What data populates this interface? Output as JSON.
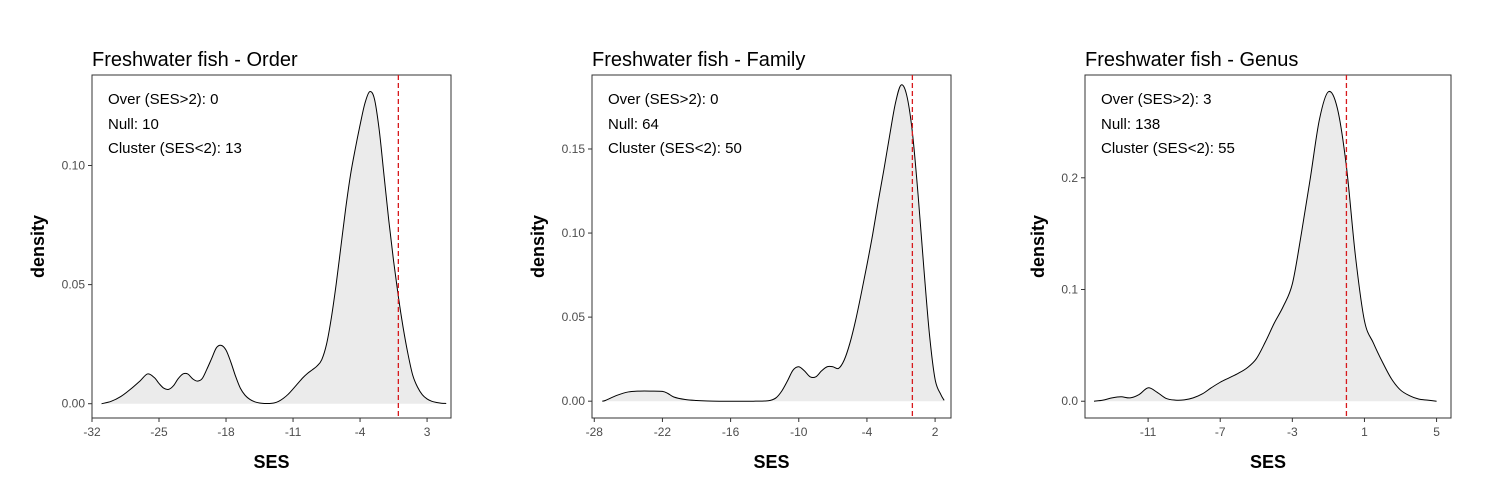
{
  "chart_data": [
    {
      "type": "area",
      "title": "Freshwater fish - Order",
      "xlabel": "SES",
      "ylabel": "density",
      "xlim": [
        -32,
        5.5
      ],
      "ylim": [
        -0.006,
        0.138
      ],
      "xticks": [
        -32,
        -25,
        -18,
        -11,
        -4,
        3
      ],
      "yticks": [
        0.0,
        0.05,
        0.1
      ],
      "ytick_labels": [
        "0.00",
        "0.05",
        "0.10"
      ],
      "vline": 0,
      "annotations": [
        "Over (SES>2): 0",
        "Null: 10",
        "Cluster (SES<2): 13"
      ],
      "grid": false,
      "series": [
        {
          "x": [
            -31,
            -30,
            -29,
            -28,
            -27,
            -26.2,
            -25.5,
            -25,
            -24.5,
            -24,
            -23.5,
            -23,
            -22.5,
            -22,
            -21.5,
            -21,
            -20.5,
            -20,
            -19.5,
            -19,
            -18.5,
            -18,
            -17.5,
            -17,
            -16.5,
            -16,
            -15.5,
            -15,
            -14.5,
            -14,
            -13.5,
            -13,
            -12.5,
            -12,
            -11.5,
            -11,
            -10.5,
            -10,
            -9.5,
            -9,
            -8.5,
            -8,
            -7.5,
            -7,
            -6.5,
            -6,
            -5.5,
            -5,
            -4.5,
            -4,
            -3.5,
            -3,
            -2.5,
            -2,
            -1.5,
            -1,
            -0.5,
            0,
            0.5,
            1,
            1.5,
            2,
            2.5,
            3,
            3.5,
            4,
            4.5,
            5
          ],
          "y": [
            0.0,
            0.001,
            0.003,
            0.006,
            0.0095,
            0.0125,
            0.011,
            0.0085,
            0.0065,
            0.006,
            0.0075,
            0.0105,
            0.0125,
            0.0125,
            0.0105,
            0.0095,
            0.0105,
            0.0145,
            0.019,
            0.0235,
            0.0245,
            0.0225,
            0.0175,
            0.0115,
            0.0065,
            0.0035,
            0.0018,
            0.0008,
            0.0003,
            0.0001,
            0.0001,
            0.0003,
            0.001,
            0.0023,
            0.004,
            0.0062,
            0.0085,
            0.0108,
            0.0127,
            0.0142,
            0.0158,
            0.0185,
            0.025,
            0.036,
            0.05,
            0.066,
            0.082,
            0.096,
            0.107,
            0.117,
            0.126,
            0.131,
            0.128,
            0.115,
            0.096,
            0.077,
            0.06,
            0.045,
            0.032,
            0.021,
            0.012,
            0.007,
            0.0038,
            0.002,
            0.001,
            0.0005,
            0.0002,
            0.0001
          ]
        }
      ]
    },
    {
      "type": "area",
      "title": "Freshwater fish - Family",
      "xlabel": "SES",
      "ylabel": "density",
      "xlim": [
        -28.2,
        3.4
      ],
      "ylim": [
        -0.01,
        0.194
      ],
      "xticks": [
        -28,
        -22,
        -16,
        -10,
        -4,
        2
      ],
      "yticks": [
        0.0,
        0.05,
        0.1,
        0.15
      ],
      "ytick_labels": [
        "0.00",
        "0.05",
        "0.10",
        "0.15"
      ],
      "vline": 0,
      "annotations": [
        "Over (SES>2): 0",
        "Null: 64",
        "Cluster (SES<2): 50"
      ],
      "grid": false,
      "series": [
        {
          "x": [
            -27.3,
            -27,
            -26,
            -25,
            -24,
            -23,
            -22,
            -21.5,
            -21,
            -20,
            -19,
            -18,
            -17,
            -16,
            -15,
            -14,
            -13,
            -12.5,
            -12,
            -11.5,
            -11,
            -10.5,
            -10,
            -9.5,
            -9,
            -8.5,
            -8,
            -7.5,
            -7,
            -6.5,
            -6,
            -5.5,
            -5,
            -4.5,
            -4,
            -3.5,
            -3,
            -2.5,
            -2,
            -1.5,
            -1,
            -0.5,
            0,
            0.5,
            1,
            1.5,
            2,
            2.5,
            2.8
          ],
          "y": [
            0.0,
            0.0005,
            0.0035,
            0.0055,
            0.006,
            0.006,
            0.0058,
            0.0045,
            0.0025,
            0.001,
            0.0004,
            0.0001,
            0.0,
            0.0,
            0.0,
            0.0,
            0.0001,
            0.0005,
            0.002,
            0.006,
            0.012,
            0.0185,
            0.0205,
            0.018,
            0.0145,
            0.0145,
            0.018,
            0.0205,
            0.0205,
            0.0195,
            0.0245,
            0.0345,
            0.048,
            0.064,
            0.081,
            0.099,
            0.119,
            0.138,
            0.158,
            0.177,
            0.188,
            0.182,
            0.16,
            0.123,
            0.08,
            0.04,
            0.013,
            0.004,
            0.0005
          ]
        }
      ]
    },
    {
      "type": "area",
      "title": "Freshwater fish - Genus",
      "xlabel": "SES",
      "ylabel": "density",
      "xlim": [
        -14.5,
        5.8
      ],
      "ylim": [
        -0.015,
        0.292
      ],
      "xticks": [
        -11,
        -7,
        -3,
        1,
        5
      ],
      "yticks": [
        0.0,
        0.1,
        0.2
      ],
      "ytick_labels": [
        "0.0",
        "0.1",
        "0.2"
      ],
      "vline": 0,
      "annotations": [
        "Over (SES>2): 3",
        "Null: 138",
        "Cluster (SES<2): 55"
      ],
      "grid": false,
      "series": [
        {
          "x": [
            -14,
            -13.5,
            -13,
            -12.5,
            -12,
            -11.5,
            -11,
            -10.5,
            -10,
            -9.5,
            -9,
            -8.5,
            -8,
            -7.5,
            -7,
            -6.5,
            -6,
            -5.5,
            -5,
            -4.5,
            -4,
            -3.5,
            -3,
            -2.5,
            -2,
            -1.5,
            -1,
            -0.5,
            0,
            0.5,
            1,
            1.5,
            2,
            2.5,
            3,
            3.5,
            4,
            4.5,
            5
          ],
          "y": [
            0.0,
            0.001,
            0.003,
            0.004,
            0.003,
            0.006,
            0.012,
            0.008,
            0.0025,
            0.001,
            0.0012,
            0.003,
            0.0065,
            0.012,
            0.017,
            0.021,
            0.025,
            0.03,
            0.038,
            0.053,
            0.07,
            0.085,
            0.105,
            0.15,
            0.2,
            0.252,
            0.277,
            0.262,
            0.21,
            0.13,
            0.072,
            0.052,
            0.035,
            0.02,
            0.01,
            0.005,
            0.002,
            0.001,
            0.0
          ]
        }
      ]
    }
  ]
}
